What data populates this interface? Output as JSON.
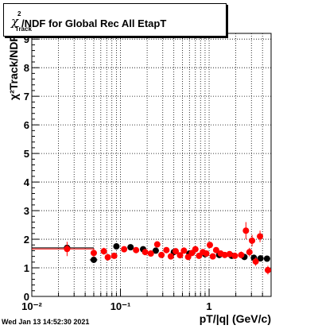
{
  "header": {
    "title_main": "/NDF for Global Rec All EtapT",
    "title_chi": "χ",
    "title_sup": "2",
    "title_sub": "Track"
  },
  "footer": {
    "timestamp": "Wed Jan 13 14:52:30 2021"
  },
  "chart_data": {
    "type": "scatter",
    "title": "χ²Track/NDF for Global Rec All EtapT",
    "xlabel": "pT/|q| (GeV/c)",
    "ylabel": "χ²Track/NDF",
    "xscale": "log",
    "xlim": [
      0.01,
      5
    ],
    "ylim": [
      0,
      9.2
    ],
    "grid": true,
    "x_tick_labels": [
      "10⁻²",
      "10⁻¹",
      "1"
    ],
    "y_ticks": [
      0,
      1,
      2,
      3,
      4,
      5,
      6,
      7,
      8,
      9
    ],
    "series": [
      {
        "color": "#000000",
        "points": [
          {
            "x": 0.025,
            "y": 1.7,
            "xerr": [
              0.015,
              0.025
            ],
            "yerr": 0.05
          },
          {
            "x": 0.05,
            "y": 1.28,
            "xerr": [
              0.005,
              0.005
            ],
            "yerr": 0.1
          },
          {
            "x": 0.09,
            "y": 1.75,
            "xerr": [
              0.005,
              0.005
            ],
            "yerr": 0.05
          },
          {
            "x": 0.13,
            "y": 1.72,
            "xerr": [
              0.01,
              0.01
            ],
            "yerr": 0.04
          },
          {
            "x": 0.18,
            "y": 1.65,
            "xerr": [
              0.01,
              0.01
            ],
            "yerr": 0.04
          },
          {
            "x": 0.25,
            "y": 1.6,
            "xerr": [
              0.02,
              0.02
            ],
            "yerr": 0.04
          },
          {
            "x": 0.4,
            "y": 1.55,
            "xerr": [
              0.03,
              0.03
            ],
            "yerr": 0.04
          },
          {
            "x": 0.6,
            "y": 1.5,
            "xerr": [
              0.05,
              0.05
            ],
            "yerr": 0.04
          },
          {
            "x": 0.9,
            "y": 1.48,
            "xerr": [
              0.05,
              0.05
            ],
            "yerr": 0.04
          },
          {
            "x": 1.3,
            "y": 1.45,
            "xerr": [
              0.1,
              0.1
            ],
            "yerr": 0.04
          },
          {
            "x": 1.8,
            "y": 1.42,
            "xerr": [
              0.1,
              0.1
            ],
            "yerr": 0.05
          },
          {
            "x": 2.5,
            "y": 1.38,
            "xerr": [
              0.15,
              0.15
            ],
            "yerr": 0.05
          },
          {
            "x": 3.2,
            "y": 1.35,
            "xerr": [
              0.2,
              0.2
            ],
            "yerr": 0.05
          },
          {
            "x": 3.8,
            "y": 1.33,
            "xerr": [
              0.2,
              0.2
            ],
            "yerr": 0.05
          },
          {
            "x": 4.5,
            "y": 1.32,
            "xerr": [
              0.25,
              0.25
            ],
            "yerr": 0.05
          }
        ]
      },
      {
        "color": "#ff0000",
        "points": [
          {
            "x": 0.025,
            "y": 1.66,
            "xerr": [
              0.015,
              0.025
            ],
            "yerr": 0.25
          },
          {
            "x": 0.05,
            "y": 1.52,
            "xerr": [
              0.003,
              0.003
            ],
            "yerr": 0.15
          },
          {
            "x": 0.065,
            "y": 1.58,
            "xerr": [
              0.003,
              0.003
            ],
            "yerr": 0.12
          },
          {
            "x": 0.072,
            "y": 1.37,
            "xerr": [
              0.003,
              0.003
            ],
            "yerr": 0.12
          },
          {
            "x": 0.085,
            "y": 1.42,
            "xerr": [
              0.004,
              0.004
            ],
            "yerr": 0.1
          },
          {
            "x": 0.11,
            "y": 1.65,
            "xerr": [
              0.005,
              0.005
            ],
            "yerr": 0.08
          },
          {
            "x": 0.15,
            "y": 1.62,
            "xerr": [
              0.005,
              0.005
            ],
            "yerr": 0.08
          },
          {
            "x": 0.19,
            "y": 1.55,
            "xerr": [
              0.005,
              0.005
            ],
            "yerr": 0.08
          },
          {
            "x": 0.22,
            "y": 1.5,
            "xerr": [
              0.005,
              0.005
            ],
            "yerr": 0.08
          },
          {
            "x": 0.26,
            "y": 1.82,
            "xerr": [
              0.005,
              0.005
            ],
            "yerr": 0.1
          },
          {
            "x": 0.29,
            "y": 1.45,
            "xerr": [
              0.005,
              0.005
            ],
            "yerr": 0.1
          },
          {
            "x": 0.33,
            "y": 1.62,
            "xerr": [
              0.005,
              0.005
            ],
            "yerr": 0.1
          },
          {
            "x": 0.37,
            "y": 1.4,
            "xerr": [
              0.005,
              0.005
            ],
            "yerr": 0.1
          },
          {
            "x": 0.42,
            "y": 1.58,
            "xerr": [
              0.005,
              0.005
            ],
            "yerr": 0.1
          },
          {
            "x": 0.47,
            "y": 1.44,
            "xerr": [
              0.005,
              0.005
            ],
            "yerr": 0.1
          },
          {
            "x": 0.52,
            "y": 1.6,
            "xerr": [
              0.005,
              0.005
            ],
            "yerr": 0.1
          },
          {
            "x": 0.58,
            "y": 1.38,
            "xerr": [
              0.005,
              0.005
            ],
            "yerr": 0.1
          },
          {
            "x": 0.64,
            "y": 1.52,
            "xerr": [
              0.005,
              0.005
            ],
            "yerr": 0.1
          },
          {
            "x": 0.7,
            "y": 1.65,
            "xerr": [
              0.005,
              0.005
            ],
            "yerr": 0.1
          },
          {
            "x": 0.77,
            "y": 1.42,
            "xerr": [
              0.005,
              0.005
            ],
            "yerr": 0.1
          },
          {
            "x": 0.85,
            "y": 1.55,
            "xerr": [
              0.005,
              0.005
            ],
            "yerr": 0.1
          },
          {
            "x": 0.93,
            "y": 1.5,
            "xerr": [
              0.005,
              0.005
            ],
            "yerr": 0.1
          },
          {
            "x": 1.02,
            "y": 1.8,
            "xerr": [
              0.005,
              0.005
            ],
            "yerr": 0.1
          },
          {
            "x": 1.1,
            "y": 1.4,
            "xerr": [
              0.005,
              0.005
            ],
            "yerr": 0.1
          },
          {
            "x": 1.2,
            "y": 1.62,
            "xerr": [
              0.005,
              0.005
            ],
            "yerr": 0.1
          },
          {
            "x": 1.35,
            "y": 1.5,
            "xerr": [
              0.005,
              0.005
            ],
            "yerr": 0.1
          },
          {
            "x": 1.5,
            "y": 1.45,
            "xerr": [
              0.005,
              0.005
            ],
            "yerr": 0.1
          },
          {
            "x": 1.7,
            "y": 1.48,
            "xerr": [
              0.005,
              0.005
            ],
            "yerr": 0.1
          },
          {
            "x": 1.95,
            "y": 1.42,
            "xerr": [
              0.005,
              0.005
            ],
            "yerr": 0.1
          },
          {
            "x": 2.3,
            "y": 1.45,
            "xerr": [
              0.005,
              0.005
            ],
            "yerr": 0.12
          },
          {
            "x": 2.6,
            "y": 2.3,
            "xerr": [
              0.005,
              0.005
            ],
            "yerr": 0.3
          },
          {
            "x": 2.85,
            "y": 1.55,
            "xerr": [
              0.005,
              0.005
            ],
            "yerr": 0.15
          },
          {
            "x": 3.05,
            "y": 1.95,
            "xerr": [
              0.005,
              0.005
            ],
            "yerr": 0.2
          },
          {
            "x": 3.35,
            "y": 1.22,
            "xerr": [
              0.005,
              0.005
            ],
            "yerr": 0.15
          },
          {
            "x": 3.75,
            "y": 2.1,
            "xerr": [
              0.005,
              0.005
            ],
            "yerr": 0.2
          },
          {
            "x": 4.6,
            "y": 0.92,
            "xerr": [
              0.005,
              0.005
            ],
            "yerr": 0.15
          }
        ]
      }
    ]
  }
}
